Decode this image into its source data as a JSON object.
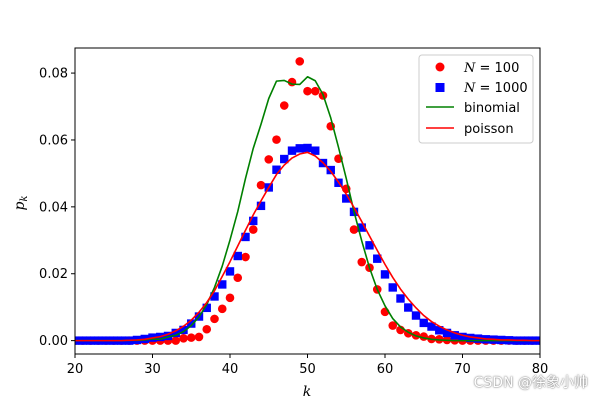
{
  "chart_data": {
    "type": "scatter",
    "xlabel": "k",
    "ylabel_base": "p",
    "ylabel_sub": "k",
    "xlim": [
      20,
      80
    ],
    "ylim": [
      -0.004,
      0.0875
    ],
    "xticks": [
      20,
      30,
      40,
      50,
      60,
      70,
      80
    ],
    "xtick_labels": [
      "20",
      "30",
      "40",
      "50",
      "60",
      "70",
      "80"
    ],
    "yticks": [
      0.0,
      0.02,
      0.04,
      0.06,
      0.08
    ],
    "ytick_labels": [
      "0.00",
      "0.02",
      "0.04",
      "0.06",
      "0.08"
    ],
    "legend_position": "top-right",
    "series": [
      {
        "name": "N=100",
        "legend_prefix": "N",
        "legend_suffix": " = 100",
        "kind": "scatter",
        "marker": "circle",
        "color": "#ff0000",
        "x": [
          20,
          21,
          22,
          23,
          24,
          25,
          26,
          27,
          28,
          29,
          30,
          31,
          32,
          33,
          34,
          35,
          36,
          37,
          38,
          39,
          40,
          41,
          42,
          43,
          44,
          45,
          46,
          47,
          48,
          49,
          50,
          51,
          52,
          53,
          54,
          55,
          56,
          57,
          58,
          59,
          60,
          61,
          62,
          63,
          64,
          65,
          66,
          67,
          68,
          69,
          70,
          71,
          72,
          73,
          74,
          75,
          76,
          77,
          78,
          79,
          80
        ],
        "y": [
          0,
          0,
          0,
          0,
          0,
          0,
          0,
          0,
          0,
          0,
          0,
          0,
          0,
          0,
          0.0007,
          0.0009,
          0.0011,
          0.0034,
          0.0065,
          0.0095,
          0.0128,
          0.0188,
          0.025,
          0.0332,
          0.0465,
          0.0542,
          0.0601,
          0.0703,
          0.0773,
          0.0835,
          0.0746,
          0.0746,
          0.0733,
          0.0641,
          0.0544,
          0.0454,
          0.0332,
          0.0235,
          0.0218,
          0.0153,
          0.0086,
          0.0045,
          0.0032,
          0.0022,
          0.0016,
          0.0012,
          0.0005,
          0.0004,
          0.0002,
          0.0001,
          0,
          0,
          0,
          0,
          0,
          0,
          0,
          0,
          0,
          0,
          0
        ]
      },
      {
        "name": "N=1000",
        "legend_prefix": "N",
        "legend_suffix": " = 1000",
        "kind": "scatter",
        "marker": "square",
        "color": "#0000ff",
        "x": [
          20,
          21,
          22,
          23,
          24,
          25,
          26,
          27,
          28,
          29,
          30,
          31,
          32,
          33,
          34,
          35,
          36,
          37,
          38,
          39,
          40,
          41,
          42,
          43,
          44,
          45,
          46,
          47,
          48,
          49,
          50,
          51,
          52,
          53,
          54,
          55,
          56,
          57,
          58,
          59,
          60,
          61,
          62,
          63,
          64,
          65,
          66,
          67,
          68,
          69,
          70,
          71,
          72,
          73,
          74,
          75,
          76,
          77,
          78,
          79,
          80
        ],
        "y": [
          0,
          0,
          0,
          0,
          0,
          0,
          0,
          0,
          0.0002,
          0.0005,
          0.0009,
          0.0011,
          0.0014,
          0.0023,
          0.0032,
          0.0051,
          0.0072,
          0.0098,
          0.0132,
          0.0168,
          0.0207,
          0.0253,
          0.031,
          0.0358,
          0.0403,
          0.0458,
          0.0511,
          0.0543,
          0.0568,
          0.0575,
          0.0576,
          0.0568,
          0.0531,
          0.051,
          0.0472,
          0.0425,
          0.0385,
          0.0338,
          0.0285,
          0.0245,
          0.0198,
          0.0159,
          0.0126,
          0.0099,
          0.0075,
          0.0053,
          0.0042,
          0.0031,
          0.0023,
          0.0016,
          0.0011,
          0.0008,
          0.0006,
          0.0004,
          0.0003,
          0.0002,
          0.0001,
          0,
          0,
          0,
          0
        ]
      },
      {
        "name": "binomial",
        "kind": "line",
        "color": "#008000",
        "x": [
          20,
          21,
          22,
          23,
          24,
          25,
          26,
          27,
          28,
          29,
          30,
          31,
          32,
          33,
          34,
          35,
          36,
          37,
          38,
          39,
          40,
          41,
          42,
          43,
          44,
          45,
          46,
          47,
          48,
          49,
          50,
          51,
          52,
          53,
          54,
          55,
          56,
          57,
          58,
          59,
          60,
          61,
          62,
          63,
          64,
          65,
          66,
          67,
          68,
          69,
          70,
          71,
          72,
          73,
          74,
          75,
          76,
          77,
          78,
          79,
          80
        ],
        "y": [
          0,
          0,
          0,
          0,
          0,
          0,
          0,
          0.0001,
          0.0001,
          0.0002,
          0.0005,
          0.0004,
          0.0011,
          0.0016,
          0.0027,
          0.0045,
          0.0071,
          0.0108,
          0.0159,
          0.0223,
          0.0301,
          0.0386,
          0.0485,
          0.0575,
          0.0647,
          0.0724,
          0.0776,
          0.0778,
          0.0767,
          0.0766,
          0.0789,
          0.0777,
          0.0736,
          0.0666,
          0.0578,
          0.0485,
          0.0386,
          0.0298,
          0.0218,
          0.0153,
          0.0104,
          0.0066,
          0.0041,
          0.0025,
          0.0014,
          0.0008,
          0.0004,
          0.0002,
          0.0001,
          0,
          0,
          0,
          0,
          0,
          0,
          0,
          0,
          0,
          0,
          0,
          0
        ]
      },
      {
        "name": "poisson",
        "kind": "line",
        "color": "#ff0000",
        "x": [
          20,
          21,
          22,
          23,
          24,
          25,
          26,
          27,
          28,
          29,
          30,
          31,
          32,
          33,
          34,
          35,
          36,
          37,
          38,
          39,
          40,
          41,
          42,
          43,
          44,
          45,
          46,
          47,
          48,
          49,
          50,
          51,
          52,
          53,
          54,
          55,
          56,
          57,
          58,
          59,
          60,
          61,
          62,
          63,
          64,
          65,
          66,
          67,
          68,
          69,
          70,
          71,
          72,
          73,
          74,
          75,
          76,
          77,
          78,
          79,
          80
        ],
        "y": [
          0,
          0,
          0,
          0,
          0,
          0,
          0,
          0.0001,
          0.0002,
          0.0004,
          0.0008,
          0.0012,
          0.0019,
          0.0029,
          0.0043,
          0.0061,
          0.0085,
          0.0114,
          0.0149,
          0.0192,
          0.0236,
          0.0283,
          0.033,
          0.0376,
          0.0418,
          0.0458,
          0.0497,
          0.0525,
          0.0546,
          0.0558,
          0.0563,
          0.0552,
          0.0532,
          0.0506,
          0.0474,
          0.0438,
          0.0398,
          0.0356,
          0.0313,
          0.027,
          0.0228,
          0.0189,
          0.0154,
          0.0124,
          0.0098,
          0.0075,
          0.0057,
          0.0043,
          0.0032,
          0.0023,
          0.0016,
          0.0011,
          0.0008,
          0.0005,
          0.0004,
          0.0002,
          0.0002,
          0.0001,
          0.0001,
          0,
          0
        ]
      }
    ]
  },
  "watermark": "CSDN @徐象小帅"
}
